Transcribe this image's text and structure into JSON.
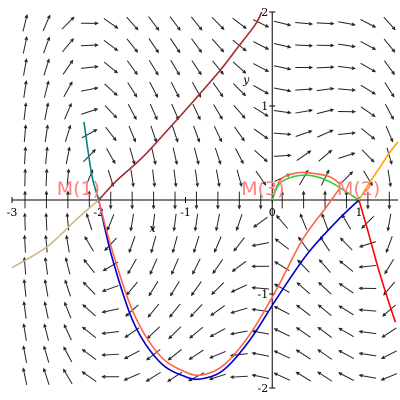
{
  "chart_data": {
    "type": "line",
    "title": "",
    "xlabel": "x",
    "ylabel": "y",
    "xlim": [
      -3,
      1.45
    ],
    "ylim": [
      -2,
      2
    ],
    "grid": false,
    "x_ticks": [
      {
        "value": -3,
        "label": "-3"
      },
      {
        "value": -2,
        "label": "-2"
      },
      {
        "value": -1,
        "label": "-1"
      },
      {
        "value": 0,
        "label": "0"
      },
      {
        "value": 1,
        "label": "1"
      }
    ],
    "y_ticks": [
      {
        "value": 2,
        "label": "2"
      },
      {
        "value": 1,
        "label": "1"
      },
      {
        "value": -1,
        "label": "-1"
      },
      {
        "value": -2,
        "label": "-2"
      }
    ],
    "direction_field": {
      "x_range": [
        -2.85,
        1.35
      ],
      "y_range": [
        -1.88,
        1.88
      ],
      "nx": 18,
      "ny": 17,
      "color": "#222222"
    },
    "points": [
      {
        "label": "M(1)",
        "x": -2.0,
        "y": 0.0
      },
      {
        "label": "M(3)",
        "x": 0.0,
        "y": 0.0
      },
      {
        "label": "M(2)",
        "x": 1.0,
        "y": 0.0
      }
    ],
    "series": [
      {
        "color": "#a52a2a",
        "points": [
          [
            -2.0,
            0.0
          ],
          [
            -1.8,
            0.2
          ],
          [
            -1.5,
            0.45
          ],
          [
            -1.2,
            0.75
          ],
          [
            -0.9,
            1.06
          ],
          [
            -0.6,
            1.38
          ],
          [
            -0.4,
            1.62
          ],
          [
            -0.2,
            1.86
          ],
          [
            -0.12,
            2.0
          ]
        ]
      },
      {
        "color": "#008080",
        "points": [
          [
            -2.0,
            0.0
          ],
          [
            -2.07,
            0.22
          ],
          [
            -2.12,
            0.5
          ],
          [
            -2.17,
            0.83
          ]
        ]
      },
      {
        "color": "#d2b48c",
        "points": [
          [
            -3.0,
            -0.72
          ],
          [
            -2.6,
            -0.5
          ],
          [
            -2.25,
            -0.2
          ],
          [
            -2.0,
            0.0
          ]
        ]
      },
      {
        "color": "#0000cd",
        "points": [
          [
            -2.0,
            0.0
          ],
          [
            -1.85,
            -0.6
          ],
          [
            -1.6,
            -1.3
          ],
          [
            -1.3,
            -1.72
          ],
          [
            -1.0,
            -1.88
          ],
          [
            -0.8,
            -1.9
          ],
          [
            -0.55,
            -1.8
          ],
          [
            -0.25,
            -1.48
          ],
          [
            0.05,
            -1.05
          ],
          [
            0.4,
            -0.58
          ],
          [
            0.75,
            -0.22
          ],
          [
            1.0,
            0.0
          ]
        ]
      },
      {
        "color": "#ff6347",
        "points": [
          [
            -2.0,
            0.0
          ],
          [
            -1.85,
            -0.52
          ],
          [
            -1.6,
            -1.2
          ],
          [
            -1.3,
            -1.65
          ],
          [
            -1.0,
            -1.83
          ],
          [
            -0.8,
            -1.86
          ],
          [
            -0.55,
            -1.75
          ],
          [
            -0.25,
            -1.42
          ],
          [
            0.05,
            -0.95
          ],
          [
            0.35,
            -0.42
          ],
          [
            0.62,
            -0.08
          ],
          [
            0.72,
            0.05
          ],
          [
            0.78,
            0.15
          ],
          [
            0.68,
            0.24
          ],
          [
            0.5,
            0.28
          ],
          [
            0.3,
            0.29
          ],
          [
            0.1,
            0.22
          ],
          [
            0.0,
            0.0
          ]
        ]
      },
      {
        "color": "#32cd32",
        "points": [
          [
            0.0,
            0.0
          ],
          [
            0.08,
            0.17
          ],
          [
            0.25,
            0.25
          ],
          [
            0.45,
            0.26
          ],
          [
            0.65,
            0.2
          ],
          [
            0.85,
            0.09
          ],
          [
            1.0,
            0.0
          ]
        ]
      },
      {
        "color": "#ff0000",
        "points": [
          [
            1.0,
            0.0
          ],
          [
            1.1,
            -0.32
          ],
          [
            1.22,
            -0.72
          ],
          [
            1.32,
            -1.02
          ],
          [
            1.42,
            -1.3
          ]
        ]
      },
      {
        "color": "#ffa500",
        "points": [
          [
            1.0,
            0.0
          ],
          [
            1.12,
            0.18
          ],
          [
            1.25,
            0.36
          ],
          [
            1.35,
            0.5
          ],
          [
            1.45,
            0.62
          ]
        ]
      }
    ]
  }
}
